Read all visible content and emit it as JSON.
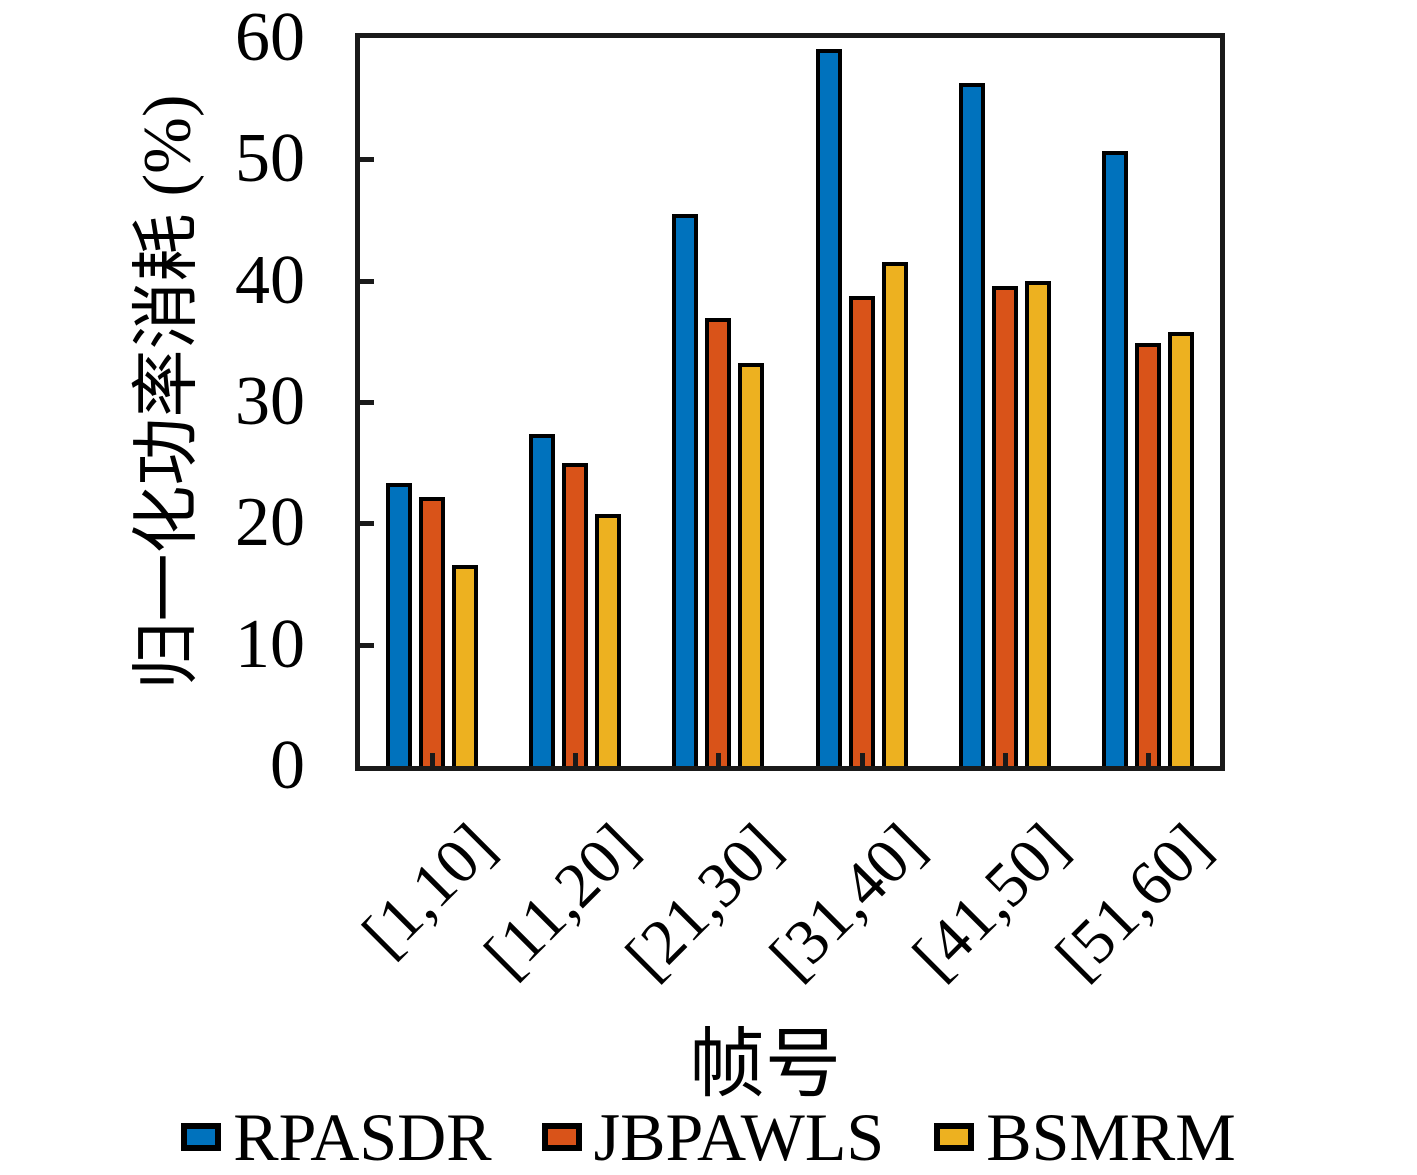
{
  "chart_data": {
    "type": "bar",
    "title": "",
    "xlabel": "帧号",
    "ylabel": "归一化功率消耗 (%)",
    "categories": [
      "[1,10]",
      "[11,20]",
      "[21,30]",
      "[31,40]",
      "[41,50]",
      "[51,60]"
    ],
    "series": [
      {
        "name": "RPASDR",
        "color": "#0072BD",
        "values": [
          23.3,
          27.4,
          45.5,
          59.1,
          56.3,
          50.7
        ]
      },
      {
        "name": "JBPAWLS",
        "color": "#D95319",
        "values": [
          22.2,
          25.0,
          36.9,
          38.7,
          39.6,
          34.9
        ]
      },
      {
        "name": "BSMRM",
        "color": "#EDB120",
        "values": [
          16.6,
          20.8,
          33.2,
          41.5,
          40.0,
          35.8
        ]
      }
    ],
    "ylim": [
      0,
      60
    ],
    "yticks": [
      0,
      10,
      20,
      30,
      40,
      50,
      60
    ],
    "grid": false,
    "legend_position": "bottom",
    "axis_color": "#1a1a1a",
    "bar_outline_color": "#000000",
    "background": "#ffffff"
  }
}
